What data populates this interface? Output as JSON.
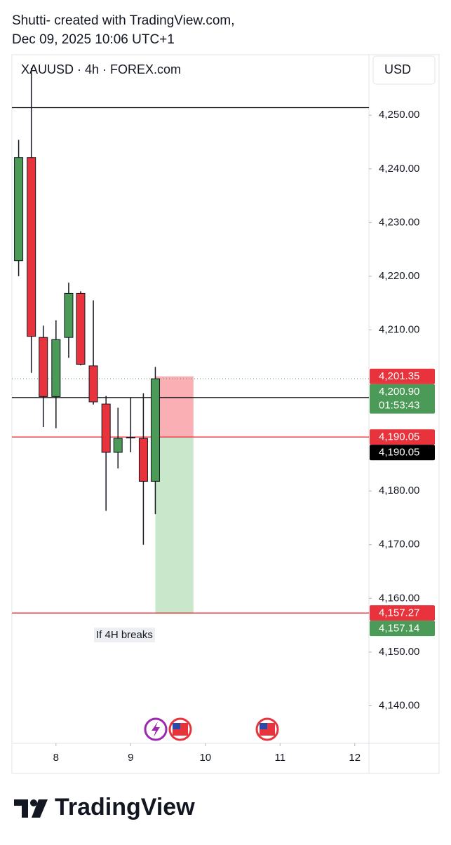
{
  "header": {
    "line1": "Shutti- created with TradingView.com,",
    "line2": "Dec 09, 2025 10:06 UTC+1"
  },
  "chart_data": {
    "type": "candlestick",
    "title": "XAUUSD · 4h · FOREX.com",
    "currency": "USD",
    "x": [
      7.5,
      7.67,
      7.83,
      8.0,
      8.17,
      8.33,
      8.5,
      8.67,
      8.83,
      9.0,
      9.17,
      9.33
    ],
    "open": [
      4222.9,
      4242.1,
      4208.6,
      4197.6,
      4208.6,
      4216.8,
      4203.3,
      4196.2,
      4187.2,
      4189.9,
      4189.8,
      4181.8
    ],
    "high": [
      4245.4,
      4258.8,
      4210.8,
      4211.8,
      4218.8,
      4217.2,
      4215.5,
      4197.7,
      4195.5,
      4197.4,
      4198.2,
      4203.1
    ],
    "low": [
      4220.0,
      4202.0,
      4191.9,
      4191.7,
      4204.8,
      4203.4,
      4196.1,
      4176.3,
      4184.2,
      4187.2,
      4170.0,
      4175.7
    ],
    "close": [
      4242.1,
      4208.8,
      4197.6,
      4208.2,
      4216.8,
      4203.6,
      4196.6,
      4187.2,
      4189.8,
      4190.0,
      4181.8,
      4200.9
    ],
    "up_color": "#4c9a57",
    "down_color": "#e8333c",
    "xlim": [
      7.41,
      12.19
    ],
    "xticks": [
      8,
      9,
      10,
      11,
      12
    ],
    "ylim": [
      4133,
      4261
    ],
    "yticks": [
      {
        "value": 4140,
        "label": "4,140.00"
      },
      {
        "value": 4150,
        "label": "4,150.00"
      },
      {
        "value": 4160,
        "label": "4,160.00"
      },
      {
        "value": 4170,
        "label": "4,170.00"
      },
      {
        "value": 4180,
        "label": "4,180.00"
      },
      {
        "value": 4210,
        "label": "4,210.00"
      },
      {
        "value": 4220,
        "label": "4,220.00"
      },
      {
        "value": 4230,
        "label": "4,230.00"
      },
      {
        "value": 4240,
        "label": "4,240.00"
      },
      {
        "value": 4250,
        "label": "4,250.00"
      }
    ],
    "grid": false,
    "lines": [
      {
        "value": 4251.4,
        "color": "#000000"
      },
      {
        "value": 4197.4,
        "color": "#000000"
      },
      {
        "value": 4190.05,
        "color": "#e8333c"
      },
      {
        "value": 4157.27,
        "color": "#e8333c"
      },
      {
        "value": 4200.9,
        "color": "#4c9a57",
        "dotted": true
      }
    ],
    "position": {
      "x": [
        9.33,
        9.84
      ],
      "stop": 4201.35,
      "entry": 4190.05,
      "target": 4157.14
    },
    "price_labels": [
      {
        "value": 4201.35,
        "label": "4,201.35",
        "color": "#e8333c"
      },
      {
        "value": 4200.9,
        "label": "4,200.90",
        "color": "#4c9a57",
        "countdown": "01:53:43"
      },
      {
        "value": 4190.05,
        "label": "4,190.05",
        "color": "#e8333c"
      },
      {
        "value": 4190.05,
        "label": "4,190.05",
        "color": "#000000"
      },
      {
        "value": 4157.27,
        "label": "4,157.27",
        "color": "#e8333c"
      },
      {
        "value": 4157.14,
        "label": "4,157.14",
        "color": "#4c9a57"
      }
    ],
    "annotation": "If 4H breaks"
  },
  "footer": {
    "brand": "TradingView"
  }
}
